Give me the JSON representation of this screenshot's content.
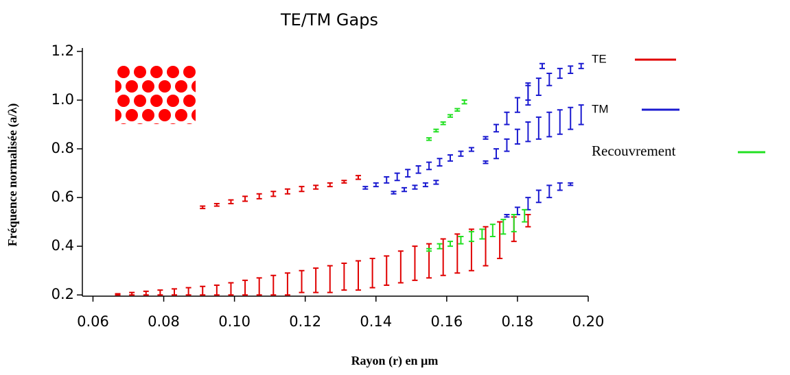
{
  "chart_data": {
    "type": "gap-range",
    "title": "TE/TM Gaps",
    "x_label": "Rayon (r) en µm",
    "y_label": "Fréquence  normalisée (a/λ)",
    "xlim": [
      0.057,
      0.2
    ],
    "ylim": [
      0.195,
      1.2
    ],
    "xticks": [
      0.06,
      0.08,
      {
        "value": 0.1,
        "label": "0.10"
      },
      0.12,
      0.14,
      0.16,
      0.18,
      {
        "value": 0.2,
        "label": "0.20"
      }
    ],
    "yticks": [
      0.2,
      0.4,
      0.6,
      0.8,
      {
        "value": 1,
        "label": "1.0"
      },
      1.2
    ],
    "series": [
      {
        "name": "TE",
        "color": "#e00000",
        "bands": [
          {
            "x": [
              0.067,
              0.071,
              0.075,
              0.079,
              0.083,
              0.087,
              0.091,
              0.095,
              0.099,
              0.103,
              0.107,
              0.111,
              0.115,
              0.119,
              0.123,
              0.127,
              0.131,
              0.135,
              0.139,
              0.143,
              0.147,
              0.151,
              0.155,
              0.159,
              0.163,
              0.167,
              0.171,
              0.175,
              0.179,
              0.183
            ],
            "low": [
              0.2,
              0.2,
              0.2,
              0.2,
              0.2,
              0.2,
              0.2,
              0.2,
              0.2,
              0.2,
              0.2,
              0.2,
              0.2,
              0.21,
              0.21,
              0.21,
              0.22,
              0.22,
              0.23,
              0.24,
              0.25,
              0.26,
              0.27,
              0.28,
              0.29,
              0.3,
              0.32,
              0.35,
              0.42,
              0.48
            ],
            "high": [
              0.205,
              0.21,
              0.215,
              0.22,
              0.225,
              0.23,
              0.235,
              0.24,
              0.25,
              0.26,
              0.27,
              0.28,
              0.29,
              0.3,
              0.31,
              0.32,
              0.33,
              0.34,
              0.35,
              0.36,
              0.38,
              0.4,
              0.41,
              0.43,
              0.45,
              0.47,
              0.48,
              0.5,
              0.52,
              0.53
            ]
          },
          {
            "x": [
              0.091,
              0.095,
              0.099,
              0.103,
              0.107,
              0.111,
              0.115,
              0.119,
              0.123,
              0.127,
              0.131,
              0.135
            ],
            "low": [
              0.555,
              0.565,
              0.575,
              0.585,
              0.595,
              0.605,
              0.615,
              0.625,
              0.635,
              0.645,
              0.66,
              0.675
            ],
            "high": [
              0.565,
              0.575,
              0.59,
              0.605,
              0.615,
              0.625,
              0.635,
              0.645,
              0.65,
              0.66,
              0.67,
              0.69
            ]
          }
        ]
      },
      {
        "name": "TM",
        "color": "#1a1ad0",
        "bands": [
          {
            "x": [
              0.137,
              0.14,
              0.143,
              0.146,
              0.149,
              0.152,
              0.155,
              0.158,
              0.161,
              0.164,
              0.167
            ],
            "low": [
              0.635,
              0.645,
              0.66,
              0.67,
              0.685,
              0.7,
              0.715,
              0.73,
              0.75,
              0.77,
              0.79
            ],
            "high": [
              0.645,
              0.66,
              0.685,
              0.7,
              0.715,
              0.73,
              0.745,
              0.76,
              0.775,
              0.79,
              0.805
            ]
          },
          {
            "x": [
              0.145,
              0.148,
              0.151,
              0.154,
              0.157
            ],
            "low": [
              0.615,
              0.625,
              0.635,
              0.645,
              0.655
            ],
            "high": [
              0.625,
              0.64,
              0.65,
              0.66,
              0.67
            ]
          },
          {
            "x": [
              0.171,
              0.174,
              0.177,
              0.18,
              0.183,
              0.187
            ],
            "low": [
              0.84,
              0.87,
              0.9,
              0.95,
              1.0,
              1.13
            ],
            "high": [
              0.85,
              0.9,
              0.95,
              1.01,
              1.07,
              1.15
            ]
          },
          {
            "x": [
              0.183,
              0.186,
              0.189,
              0.192,
              0.195,
              0.198
            ],
            "low": [
              0.98,
              1.02,
              1.06,
              1.09,
              1.11,
              1.13
            ],
            "high": [
              1.06,
              1.09,
              1.11,
              1.13,
              1.14,
              1.15
            ]
          },
          {
            "x": [
              0.171,
              0.174,
              0.177,
              0.18,
              0.183,
              0.186,
              0.189,
              0.192,
              0.195,
              0.198
            ],
            "low": [
              0.74,
              0.76,
              0.79,
              0.82,
              0.83,
              0.84,
              0.85,
              0.86,
              0.88,
              0.9
            ],
            "high": [
              0.75,
              0.8,
              0.84,
              0.88,
              0.91,
              0.93,
              0.95,
              0.96,
              0.97,
              0.98
            ]
          },
          {
            "x": [
              0.177,
              0.18,
              0.183,
              0.186,
              0.189,
              0.192,
              0.195
            ],
            "low": [
              0.52,
              0.53,
              0.55,
              0.58,
              0.6,
              0.63,
              0.65
            ],
            "high": [
              0.53,
              0.56,
              0.6,
              0.63,
              0.65,
              0.66,
              0.66
            ]
          }
        ]
      },
      {
        "name": "Recouvrement",
        "color": "#22e022",
        "bands": [
          {
            "x": [
              0.155,
              0.157,
              0.159,
              0.161,
              0.163,
              0.165
            ],
            "low": [
              0.835,
              0.87,
              0.9,
              0.93,
              0.955,
              0.985
            ],
            "high": [
              0.845,
              0.88,
              0.91,
              0.94,
              0.965,
              1.0
            ]
          },
          {
            "x": [
              0.155,
              0.158,
              0.161,
              0.164,
              0.167,
              0.17,
              0.173,
              0.176,
              0.179,
              0.182
            ],
            "low": [
              0.38,
              0.39,
              0.4,
              0.41,
              0.42,
              0.43,
              0.44,
              0.45,
              0.46,
              0.5
            ],
            "high": [
              0.39,
              0.41,
              0.42,
              0.44,
              0.46,
              0.47,
              0.49,
              0.51,
              0.53,
              0.55
            ]
          }
        ]
      }
    ]
  }
}
